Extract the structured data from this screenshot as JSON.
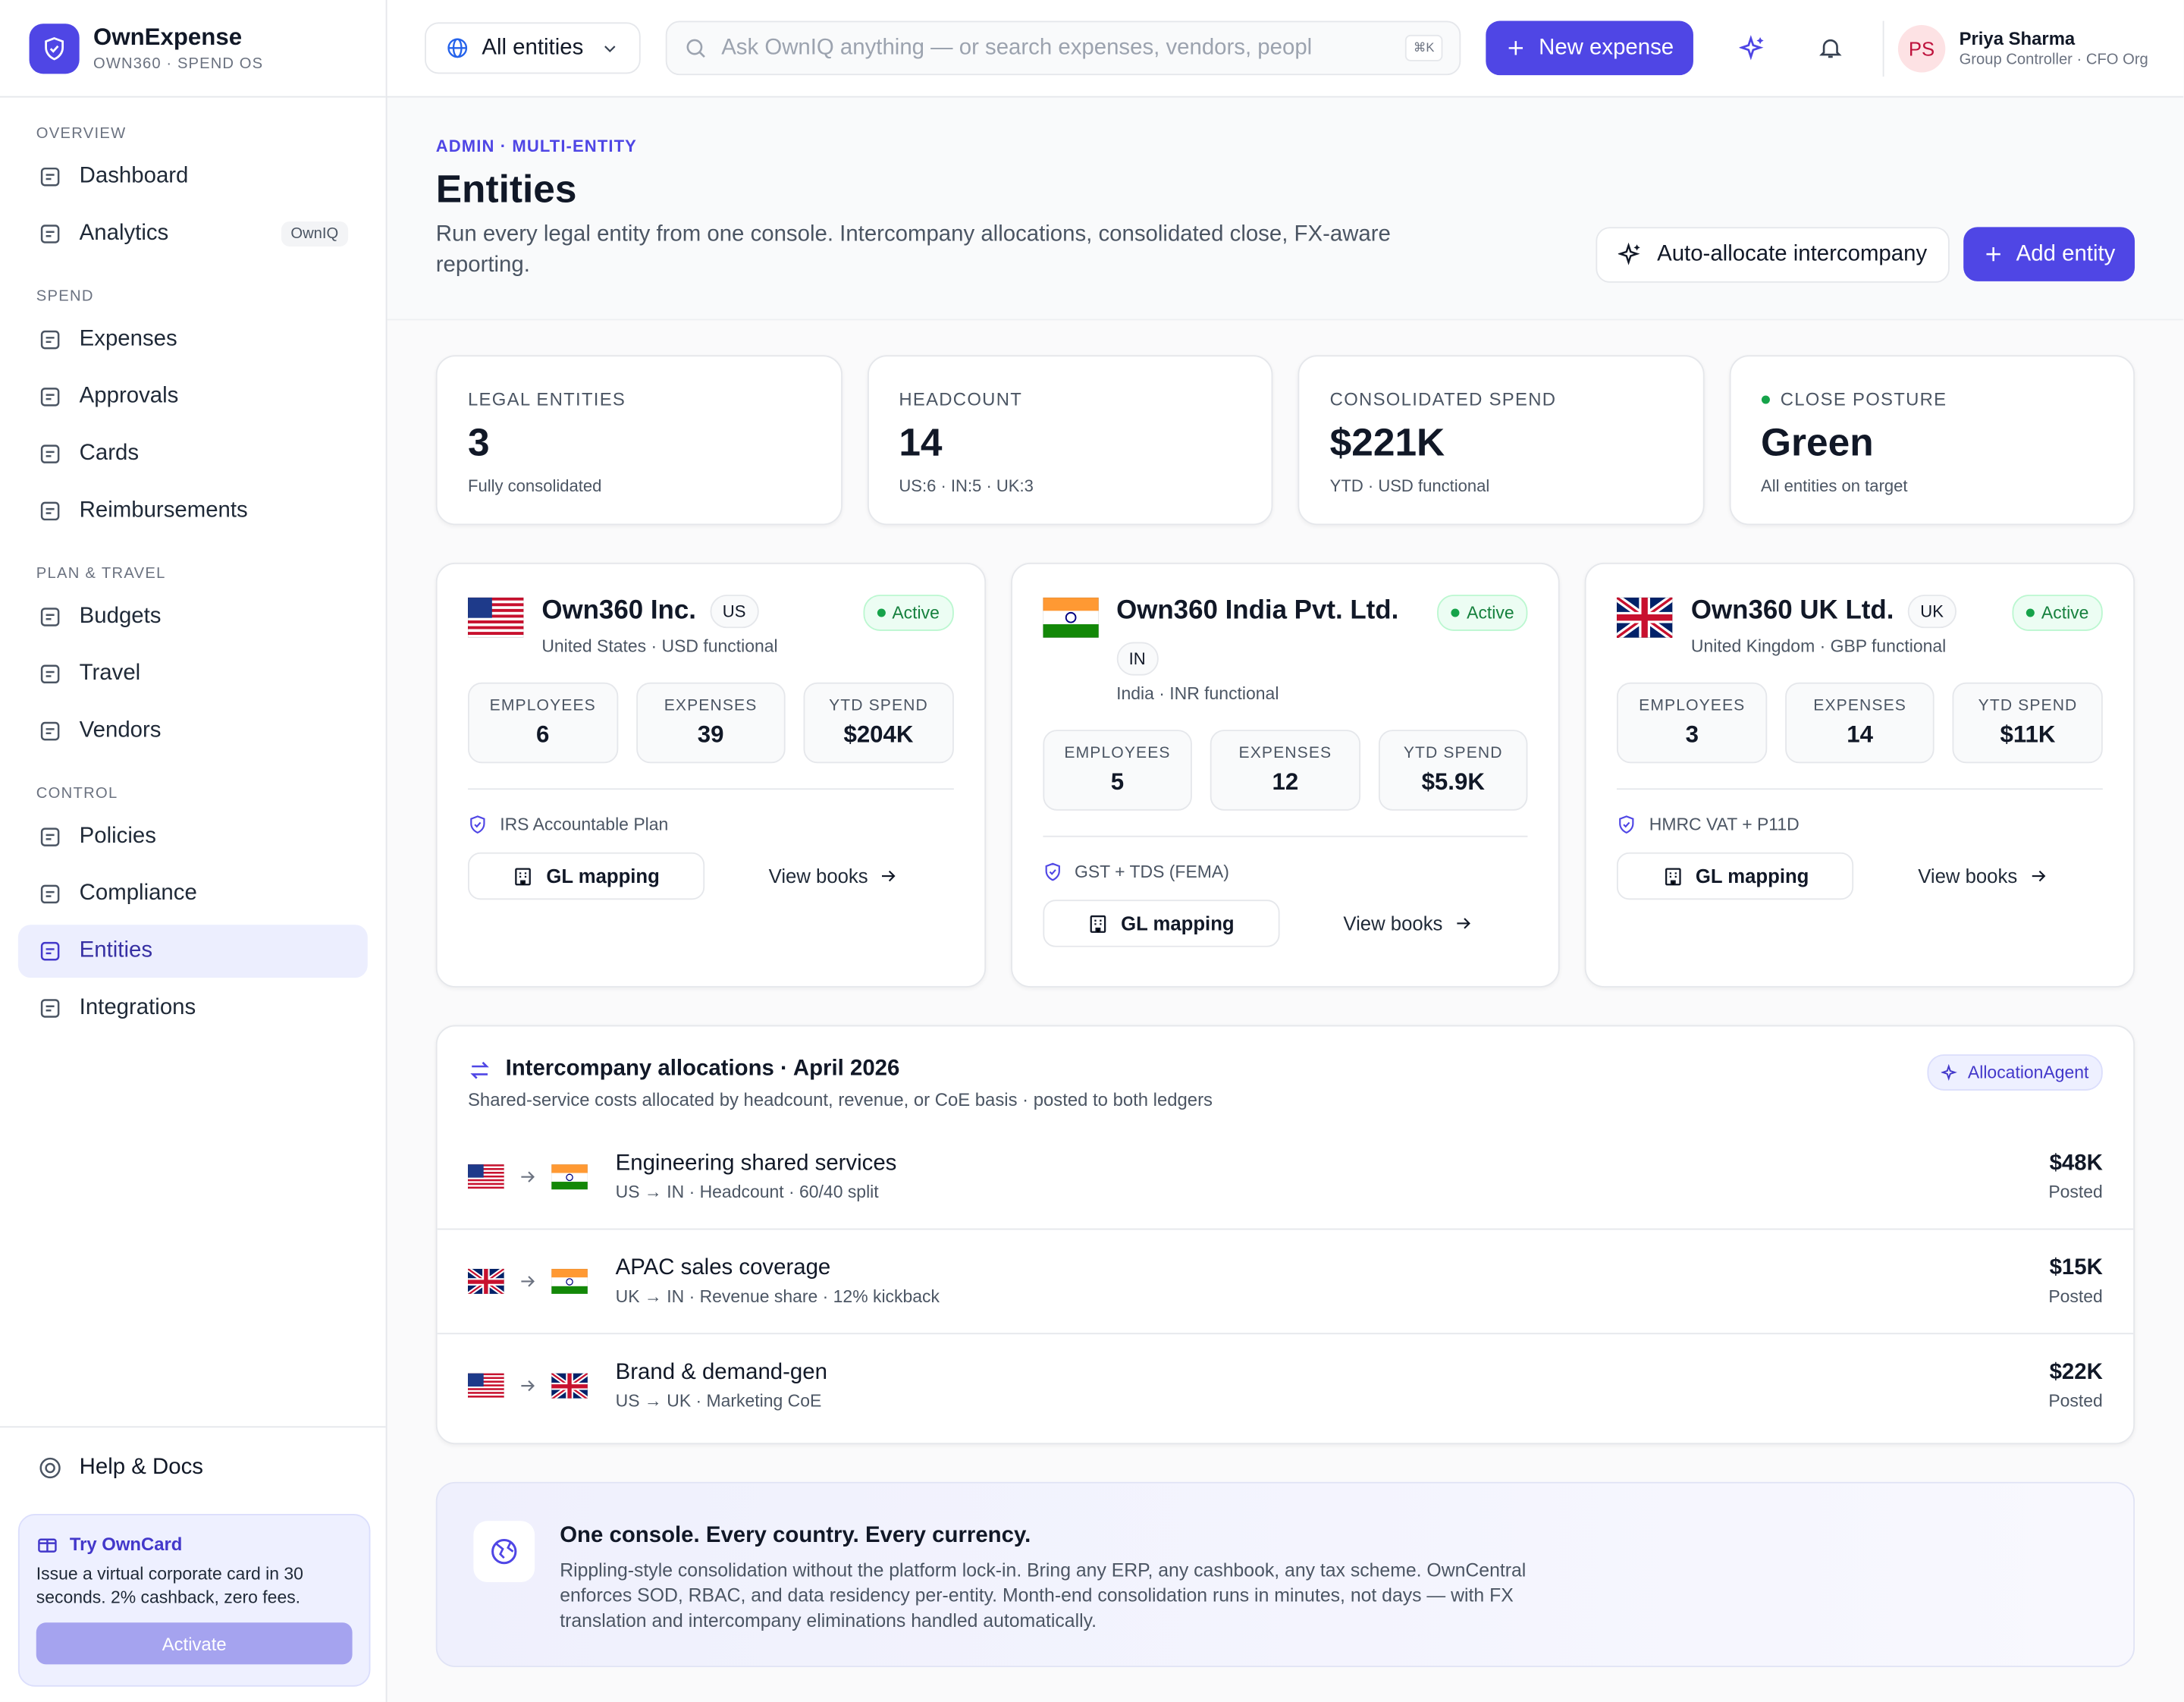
{
  "brand": {
    "name": "OwnExpense",
    "tagline": "OWN360 · SPEND OS"
  },
  "topbar": {
    "entity_selector": "All entities",
    "search_placeholder": "Ask OwnIQ anything — or search expenses, vendors, peopl",
    "search_shortcut": "⌘K",
    "new_expense": "New expense",
    "user": {
      "initials": "PS",
      "name": "Priya Sharma",
      "role": "Group Controller · CFO Org"
    }
  },
  "sidebar": {
    "sections": [
      {
        "title": "OVERVIEW",
        "items": [
          {
            "label": "Dashboard"
          },
          {
            "label": "Analytics",
            "badge": "OwnIQ"
          }
        ]
      },
      {
        "title": "SPEND",
        "items": [
          {
            "label": "Expenses"
          },
          {
            "label": "Approvals"
          },
          {
            "label": "Cards"
          },
          {
            "label": "Reimbursements"
          }
        ]
      },
      {
        "title": "PLAN & TRAVEL",
        "items": [
          {
            "label": "Budgets"
          },
          {
            "label": "Travel"
          },
          {
            "label": "Vendors"
          }
        ]
      },
      {
        "title": "CONTROL",
        "items": [
          {
            "label": "Policies"
          },
          {
            "label": "Compliance"
          },
          {
            "label": "Entities",
            "active": true
          },
          {
            "label": "Integrations"
          }
        ]
      }
    ],
    "help": "Help & Docs",
    "promo": {
      "title": "Try OwnCard",
      "text": "Issue a virtual corporate card in 30 seconds. 2% cashback, zero fees.",
      "button": "Activate"
    }
  },
  "header": {
    "breadcrumb": "ADMIN · MULTI-ENTITY",
    "title": "Entities",
    "description": "Run every legal entity from one console. Intercompany allocations, consolidated close, FX-aware reporting.",
    "actions": [
      "Auto-allocate intercompany",
      "Add entity"
    ]
  },
  "stats": [
    {
      "label": "LEGAL ENTITIES",
      "value": "3",
      "note": "Fully consolidated"
    },
    {
      "label": "HEADCOUNT",
      "value": "14",
      "note": "US:6 · IN:5 · UK:3"
    },
    {
      "label": "CONSOLIDATED SPEND",
      "value": "$221K",
      "note": "YTD · USD functional"
    },
    {
      "label": "CLOSE POSTURE",
      "value": "Green",
      "note": "All entities on target"
    }
  ],
  "entities": [
    {
      "name": "Own360 Inc.",
      "code": "US",
      "status": "Active",
      "region": "United States · USD functional",
      "metrics": [
        {
          "label": "EMPLOYEES",
          "value": "6"
        },
        {
          "label": "EXPENSES",
          "value": "39"
        },
        {
          "label": "YTD SPEND",
          "value": "$204K"
        }
      ],
      "policy": "IRS Accountable Plan",
      "gl_button": "GL mapping",
      "books_link": "View books"
    },
    {
      "name": "Own360 India Pvt. Ltd.",
      "code": "IN",
      "status": "Active",
      "region": "India · INR functional",
      "metrics": [
        {
          "label": "EMPLOYEES",
          "value": "5"
        },
        {
          "label": "EXPENSES",
          "value": "12"
        },
        {
          "label": "YTD SPEND",
          "value": "$5.9K"
        }
      ],
      "policy": "GST + TDS (FEMA)",
      "gl_button": "GL mapping",
      "books_link": "View books"
    },
    {
      "name": "Own360 UK Ltd.",
      "code": "UK",
      "status": "Active",
      "region": "United Kingdom · GBP functional",
      "metrics": [
        {
          "label": "EMPLOYEES",
          "value": "3"
        },
        {
          "label": "EXPENSES",
          "value": "14"
        },
        {
          "label": "YTD SPEND",
          "value": "$11K"
        }
      ],
      "policy": "HMRC VAT + P11D",
      "gl_button": "GL mapping",
      "books_link": "View books"
    }
  ],
  "allocations": {
    "title": "Intercompany allocations · April 2026",
    "subtitle": "Shared-service costs allocated by headcount, revenue, or CoE basis · posted to both ledgers",
    "agent": "AllocationAgent",
    "rows": [
      {
        "name": "Engineering shared services",
        "detail": "US → IN · Headcount · 60/40 split",
        "amount": "$48K",
        "status": "Posted"
      },
      {
        "name": "APAC sales coverage",
        "detail": "UK → IN · Revenue share · 12% kickback",
        "amount": "$15K",
        "status": "Posted"
      },
      {
        "name": "Brand & demand-gen",
        "detail": "US → UK · Marketing CoE",
        "amount": "$22K",
        "status": "Posted"
      }
    ]
  },
  "banner": {
    "title": "One console. Every country. Every currency.",
    "text": "Rippling-style consolidation without the platform lock-in. Bring any ERP, any cashbook, any tax scheme. OwnCentral enforces SOD, RBAC, and data residency per-entity. Month-end consolidation runs in minutes, not days — with FX translation and intercompany eliminations handled automatically."
  }
}
